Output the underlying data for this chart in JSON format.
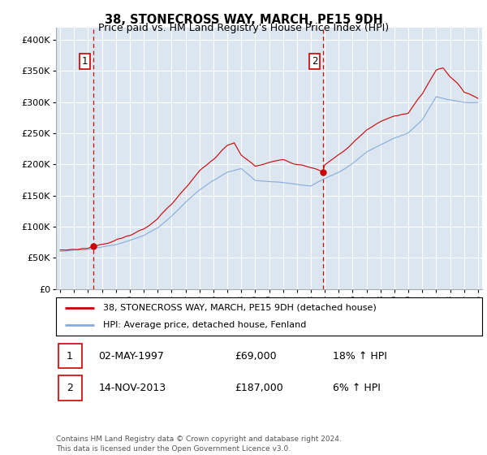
{
  "title": "38, STONECROSS WAY, MARCH, PE15 9DH",
  "subtitle": "Price paid vs. HM Land Registry's House Price Index (HPI)",
  "ylim": [
    0,
    420000
  ],
  "yticks": [
    0,
    50000,
    100000,
    150000,
    200000,
    250000,
    300000,
    350000,
    400000
  ],
  "ytick_labels": [
    "£0",
    "£50K",
    "£100K",
    "£150K",
    "£200K",
    "£250K",
    "£300K",
    "£350K",
    "£400K"
  ],
  "bg_color": "#dce6f1",
  "grid_color": "#ffffff",
  "red_line_color": "#cc0000",
  "blue_line_color": "#88aadd",
  "purchase1_year": 1997.37,
  "purchase1_price": 69000,
  "purchase2_year": 2013.87,
  "purchase2_price": 187000,
  "legend_line1": "38, STONECROSS WAY, MARCH, PE15 9DH (detached house)",
  "legend_line2": "HPI: Average price, detached house, Fenland",
  "table_row1_num": "1",
  "table_row1_date": "02-MAY-1997",
  "table_row1_price": "£69,000",
  "table_row1_hpi": "18% ↑ HPI",
  "table_row2_num": "2",
  "table_row2_date": "14-NOV-2013",
  "table_row2_price": "£187,000",
  "table_row2_hpi": "6% ↑ HPI",
  "footer": "Contains HM Land Registry data © Crown copyright and database right 2024.\nThis data is licensed under the Open Government Licence v3.0.",
  "vline_color": "#cc0000",
  "xlim_left": 1994.7,
  "xlim_right": 2025.3
}
